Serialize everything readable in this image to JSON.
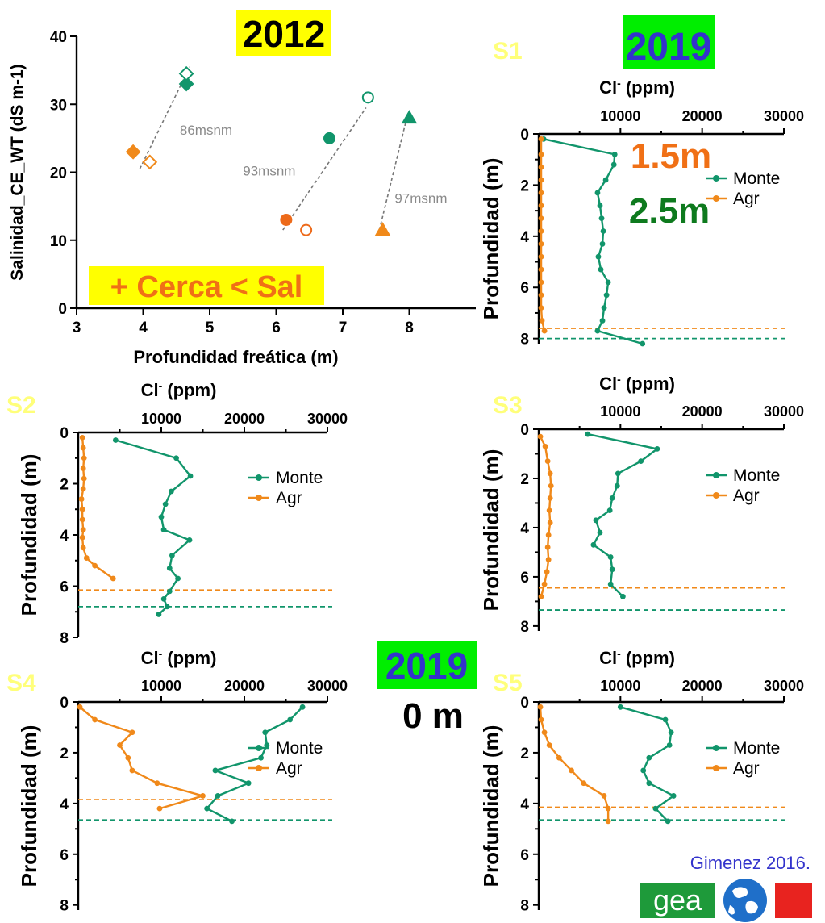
{
  "colors": {
    "monte": "#11956b",
    "agr": "#f0891a",
    "agr_dark": "#ed6a1a",
    "highlight_yellow": "#ffff00",
    "highlight_green": "#00ee00",
    "blue_text": "#3333cc"
  },
  "labels": {
    "year_2012": "2012",
    "year_2019_top": "2019",
    "year_2019_mid": "2019",
    "cerca_sal": "+ Cerca < Sal",
    "depth_15": "1.5m",
    "depth_25": "2.5m",
    "zero_m": "0 m",
    "credit": "Gimenez 2016.",
    "logo_text": "gea",
    "s1": "S1",
    "s2": "S2",
    "s3": "S3",
    "s4": "S4",
    "s5": "S5"
  },
  "chart_data": [
    {
      "id": "scatter2012",
      "type": "scatter",
      "title": "2012",
      "xlabel": "Profundidad freática (m)",
      "ylabel": "Salinidad_CE_WT (dS m-1)",
      "xlim": [
        3,
        9
      ],
      "ylim": [
        0,
        40
      ],
      "xticks": [
        3,
        4,
        5,
        6,
        7,
        8
      ],
      "yticks": [
        0,
        10,
        20,
        30,
        40
      ],
      "points": [
        {
          "x": 3.85,
          "y": 23,
          "shape": "diamond",
          "fill": "filled",
          "color": "agr"
        },
        {
          "x": 4.1,
          "y": 21.5,
          "shape": "diamond",
          "fill": "open",
          "color": "agr"
        },
        {
          "x": 4.65,
          "y": 33,
          "shape": "diamond",
          "fill": "filled",
          "color": "monte"
        },
        {
          "x": 4.65,
          "y": 34.5,
          "shape": "diamond",
          "fill": "open",
          "color": "monte"
        },
        {
          "x": 6.15,
          "y": 13,
          "shape": "circle",
          "fill": "filled",
          "color": "agr_dark"
        },
        {
          "x": 6.45,
          "y": 11.5,
          "shape": "circle",
          "fill": "open",
          "color": "agr_dark"
        },
        {
          "x": 6.8,
          "y": 25,
          "shape": "circle",
          "fill": "filled",
          "color": "monte"
        },
        {
          "x": 7.38,
          "y": 31,
          "shape": "circle",
          "fill": "open",
          "color": "monte"
        },
        {
          "x": 7.6,
          "y": 11.5,
          "shape": "triangle",
          "fill": "filled",
          "color": "agr"
        },
        {
          "x": 8.0,
          "y": 28,
          "shape": "triangle",
          "fill": "filled",
          "color": "monte"
        }
      ],
      "fit_lines": [
        {
          "x1": 3.95,
          "y1": 20.5,
          "x2": 4.7,
          "y2": 35.5
        },
        {
          "x1": 6.1,
          "y1": 11.5,
          "x2": 7.35,
          "y2": 29.5
        },
        {
          "x1": 7.55,
          "y1": 11.5,
          "x2": 7.95,
          "y2": 27.5
        }
      ],
      "annotations": [
        {
          "text": "86msnm",
          "x": 4.55,
          "y": 25.5
        },
        {
          "text": "93msnm",
          "x": 5.5,
          "y": 19.5
        },
        {
          "text": "97msnm",
          "x": 7.78,
          "y": 15.5
        }
      ]
    },
    {
      "id": "S1",
      "type": "line",
      "xlabel": "Cl- (ppm)",
      "ylabel": "Profundidad (m)",
      "xlim": [
        0,
        30000
      ],
      "ylim": [
        8.2,
        0
      ],
      "xticks": [
        10000,
        20000,
        30000
      ],
      "yticks": [
        0,
        2,
        4,
        6,
        8
      ],
      "legend": "right",
      "series": [
        {
          "name": "Monte",
          "points": [
            [
              600,
              0.2
            ],
            [
              9300,
              0.8
            ],
            [
              9200,
              1.2
            ],
            [
              8200,
              1.8
            ],
            [
              7200,
              2.3
            ],
            [
              7500,
              2.8
            ],
            [
              7700,
              3.3
            ],
            [
              7900,
              3.8
            ],
            [
              7800,
              4.3
            ],
            [
              7300,
              4.8
            ],
            [
              7600,
              5.3
            ],
            [
              8500,
              5.8
            ],
            [
              8300,
              6.3
            ],
            [
              8000,
              6.8
            ],
            [
              7800,
              7.3
            ],
            [
              7200,
              7.7
            ],
            [
              12700,
              8.2
            ]
          ]
        },
        {
          "name": "Agr",
          "points": [
            [
              300,
              0.2
            ],
            [
              300,
              0.8
            ],
            [
              300,
              1.3
            ],
            [
              300,
              1.8
            ],
            [
              300,
              2.3
            ],
            [
              300,
              2.8
            ],
            [
              300,
              3.3
            ],
            [
              300,
              3.8
            ],
            [
              300,
              4.3
            ],
            [
              300,
              4.8
            ],
            [
              300,
              5.3
            ],
            [
              300,
              5.8
            ],
            [
              300,
              6.3
            ],
            [
              300,
              6.8
            ],
            [
              400,
              7.3
            ],
            [
              700,
              7.7
            ]
          ]
        }
      ],
      "hlines": [
        {
          "depth": 7.6,
          "color": "agr"
        },
        {
          "depth": 8.0,
          "color": "monte"
        }
      ]
    },
    {
      "id": "S2",
      "type": "line",
      "xlabel": "Cl- (ppm)",
      "ylabel": "Profundidad (m)",
      "xlim": [
        0,
        30000
      ],
      "ylim": [
        8,
        0
      ],
      "xticks": [
        10000,
        20000,
        30000
      ],
      "yticks": [
        0,
        2,
        4,
        6,
        8
      ],
      "legend": "right",
      "series": [
        {
          "name": "Monte",
          "points": [
            [
              4500,
              0.3
            ],
            [
              11800,
              1.0
            ],
            [
              13500,
              1.7
            ],
            [
              11200,
              2.3
            ],
            [
              10500,
              2.8
            ],
            [
              10000,
              3.3
            ],
            [
              10300,
              3.8
            ],
            [
              13400,
              4.2
            ],
            [
              11300,
              4.8
            ],
            [
              11000,
              5.3
            ],
            [
              12000,
              5.7
            ],
            [
              11000,
              6.2
            ],
            [
              10300,
              6.5
            ],
            [
              10700,
              6.8
            ],
            [
              9700,
              7.1
            ]
          ]
        },
        {
          "name": "Agr",
          "points": [
            [
              500,
              0.2
            ],
            [
              600,
              0.6
            ],
            [
              700,
              1.0
            ],
            [
              600,
              1.4
            ],
            [
              700,
              1.8
            ],
            [
              600,
              2.2
            ],
            [
              400,
              2.6
            ],
            [
              500,
              3.0
            ],
            [
              500,
              3.4
            ],
            [
              600,
              3.8
            ],
            [
              500,
              4.1
            ],
            [
              600,
              4.5
            ],
            [
              1000,
              4.9
            ],
            [
              2000,
              5.2
            ],
            [
              4200,
              5.7
            ]
          ]
        }
      ],
      "hlines": [
        {
          "depth": 6.15,
          "color": "agr"
        },
        {
          "depth": 6.8,
          "color": "monte"
        }
      ]
    },
    {
      "id": "S3",
      "type": "line",
      "xlabel": "Cl- (ppm)",
      "ylabel": "Profundidad (m)",
      "xlim": [
        0,
        30000
      ],
      "ylim": [
        8.2,
        0
      ],
      "xticks": [
        10000,
        20000,
        30000
      ],
      "yticks": [
        0,
        2,
        4,
        6,
        8
      ],
      "legend": "right",
      "series": [
        {
          "name": "Monte",
          "points": [
            [
              6000,
              0.2
            ],
            [
              14500,
              0.8
            ],
            [
              12500,
              1.3
            ],
            [
              9700,
              1.8
            ],
            [
              9600,
              2.3
            ],
            [
              9000,
              2.8
            ],
            [
              8700,
              3.3
            ],
            [
              7000,
              3.7
            ],
            [
              7500,
              4.2
            ],
            [
              6700,
              4.7
            ],
            [
              8800,
              5.2
            ],
            [
              9000,
              5.7
            ],
            [
              8800,
              6.3
            ],
            [
              10300,
              6.8
            ]
          ]
        },
        {
          "name": "Agr",
          "points": [
            [
              200,
              0.3
            ],
            [
              800,
              0.7
            ],
            [
              1100,
              1.3
            ],
            [
              1400,
              1.8
            ],
            [
              1500,
              2.3
            ],
            [
              1400,
              2.8
            ],
            [
              1300,
              3.3
            ],
            [
              1400,
              3.8
            ],
            [
              1200,
              4.3
            ],
            [
              1100,
              4.8
            ],
            [
              1200,
              5.3
            ],
            [
              1000,
              5.8
            ],
            [
              700,
              6.3
            ],
            [
              300,
              6.8
            ]
          ]
        }
      ],
      "hlines": [
        {
          "depth": 6.45,
          "color": "agr"
        },
        {
          "depth": 7.35,
          "color": "monte"
        }
      ]
    },
    {
      "id": "S4",
      "type": "line",
      "xlabel": "Cl- (ppm)",
      "ylabel": "Profundidad (m)",
      "xlim": [
        0,
        30000
      ],
      "ylim": [
        8.2,
        0
      ],
      "xticks": [
        10000,
        20000,
        30000
      ],
      "yticks": [
        0,
        2,
        4,
        6,
        8
      ],
      "legend": "right",
      "series": [
        {
          "name": "Monte",
          "points": [
            [
              27000,
              0.2
            ],
            [
              25500,
              0.7
            ],
            [
              22500,
              1.2
            ],
            [
              22700,
              1.7
            ],
            [
              22000,
              2.2
            ],
            [
              16500,
              2.7
            ],
            [
              20500,
              3.2
            ],
            [
              16800,
              3.7
            ],
            [
              15500,
              4.2
            ],
            [
              18500,
              4.7
            ]
          ]
        },
        {
          "name": "Agr",
          "points": [
            [
              200,
              0.2
            ],
            [
              2000,
              0.7
            ],
            [
              6500,
              1.2
            ],
            [
              5000,
              1.7
            ],
            [
              6000,
              2.2
            ],
            [
              6500,
              2.7
            ],
            [
              9500,
              3.2
            ],
            [
              15000,
              3.7
            ],
            [
              9800,
              4.2
            ]
          ]
        }
      ],
      "hlines": [
        {
          "depth": 3.85,
          "color": "agr"
        },
        {
          "depth": 4.65,
          "color": "monte"
        }
      ]
    },
    {
      "id": "S5",
      "type": "line",
      "xlabel": "Cl- (ppm)",
      "ylabel": "Profundidad (m)",
      "xlim": [
        0,
        30000
      ],
      "ylim": [
        8.2,
        0
      ],
      "xticks": [
        10000,
        20000,
        30000
      ],
      "yticks": [
        0,
        2,
        4,
        6,
        8
      ],
      "legend": "right",
      "series": [
        {
          "name": "Monte",
          "points": [
            [
              10000,
              0.2
            ],
            [
              15500,
              0.7
            ],
            [
              16200,
              1.2
            ],
            [
              16000,
              1.7
            ],
            [
              13500,
              2.2
            ],
            [
              12800,
              2.7
            ],
            [
              13500,
              3.2
            ],
            [
              16500,
              3.7
            ],
            [
              14300,
              4.2
            ],
            [
              15800,
              4.7
            ]
          ]
        },
        {
          "name": "Agr",
          "points": [
            [
              200,
              0.2
            ],
            [
              300,
              0.7
            ],
            [
              700,
              1.2
            ],
            [
              1300,
              1.7
            ],
            [
              2500,
              2.2
            ],
            [
              4000,
              2.7
            ],
            [
              5500,
              3.2
            ],
            [
              8000,
              3.7
            ],
            [
              8500,
              4.2
            ],
            [
              8500,
              4.7
            ]
          ]
        }
      ],
      "hlines": [
        {
          "depth": 4.15,
          "color": "agr"
        },
        {
          "depth": 4.65,
          "color": "monte"
        }
      ]
    }
  ]
}
